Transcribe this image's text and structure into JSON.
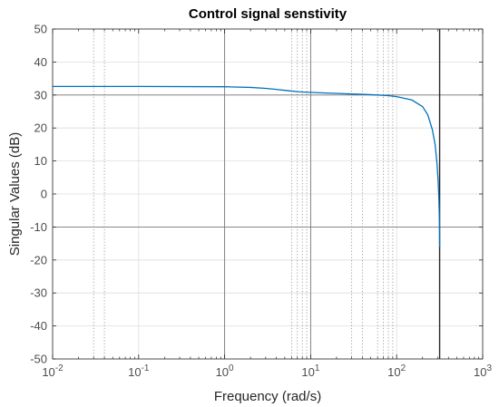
{
  "chart_data": {
    "type": "line",
    "title": "Control signal senstivity",
    "xlabel": "Frequency (rad/s)",
    "ylabel": "Singular Values (dB)",
    "xscale": "log",
    "xlim": [
      0.01,
      1000
    ],
    "ylim": [
      -50,
      50
    ],
    "grid": true,
    "x_ticks": [
      {
        "base": "10",
        "exp": "-2"
      },
      {
        "base": "10",
        "exp": "-1"
      },
      {
        "base": "10",
        "exp": "0"
      },
      {
        "base": "10",
        "exp": "1"
      },
      {
        "base": "10",
        "exp": "2"
      },
      {
        "base": "10",
        "exp": "3"
      }
    ],
    "y_ticks": [
      "50",
      "40",
      "30",
      "20",
      "10",
      "0",
      "-10",
      "-20",
      "-30",
      "-40",
      "-50"
    ],
    "reference_lines": {
      "horizontal_y": [
        30,
        -10
      ],
      "vertical_x": [
        1,
        10,
        316
      ]
    },
    "dotted_vertical_x": [
      0.03,
      0.04,
      6,
      7,
      8,
      9,
      30,
      40,
      60,
      70,
      80,
      90
    ],
    "line_color": "#0072BD",
    "series": [
      {
        "x": [
          0.01,
          0.1,
          1,
          2,
          3,
          4,
          5,
          6,
          7,
          8,
          10,
          15,
          20,
          30,
          40,
          60,
          80,
          100,
          150,
          200,
          230,
          260,
          280,
          295,
          305,
          310,
          313,
          315,
          316
        ],
        "y": [
          32.6,
          32.6,
          32.5,
          32.3,
          32.0,
          31.7,
          31.4,
          31.2,
          31.0,
          30.9,
          30.8,
          30.6,
          30.5,
          30.3,
          30.2,
          30.0,
          29.8,
          29.5,
          28.5,
          26.5,
          24.0,
          19.5,
          15.0,
          9.0,
          3.0,
          -2.0,
          -6.0,
          -10.0,
          -16.0
        ]
      }
    ]
  }
}
